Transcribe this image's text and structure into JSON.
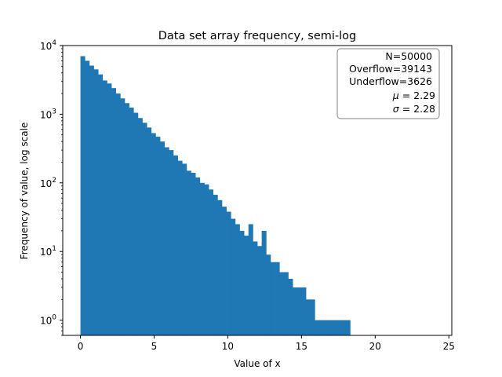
{
  "chart_data": {
    "type": "bar",
    "title": "Data set array frequency, semi-log",
    "xlabel": "Value of x",
    "ylabel": "Frequency of value, log scale",
    "yscale": "log",
    "xlim": [
      -1.2,
      25.2
    ],
    "ylim": [
      0.6,
      10000
    ],
    "xticks": [
      0,
      5,
      10,
      15,
      20,
      25
    ],
    "yticks": [
      {
        "value": 1,
        "base": "10",
        "exp": "0"
      },
      {
        "value": 10,
        "base": "10",
        "exp": "1"
      },
      {
        "value": 100,
        "base": "10",
        "exp": "2"
      },
      {
        "value": 1000,
        "base": "10",
        "exp": "3"
      },
      {
        "value": 10000,
        "base": "10",
        "exp": "4"
      }
    ],
    "bar_color": "#1f77b4",
    "bin_width": 0.3,
    "bin_start": 0,
    "values": [
      7000,
      6000,
      5100,
      4500,
      3800,
      3100,
      2800,
      2400,
      2000,
      1700,
      1450,
      1250,
      1050,
      880,
      750,
      640,
      530,
      470,
      400,
      330,
      300,
      250,
      210,
      190,
      150,
      140,
      120,
      100,
      95,
      80,
      67,
      56,
      45,
      38,
      30,
      25,
      20,
      17,
      25,
      14,
      12,
      20,
      9,
      7,
      7,
      5,
      5,
      4,
      3,
      3,
      3,
      2,
      2,
      1,
      1,
      1,
      1,
      1,
      1,
      1,
      1,
      0
    ],
    "stats": {
      "n": "N=50000",
      "overflow": "Overflow=39143",
      "underflow": "Underflow=3626",
      "mu_symbol": "μ",
      "mu_value": " = 2.29",
      "sigma_symbol": "σ",
      "sigma_value": " = 2.28"
    }
  }
}
